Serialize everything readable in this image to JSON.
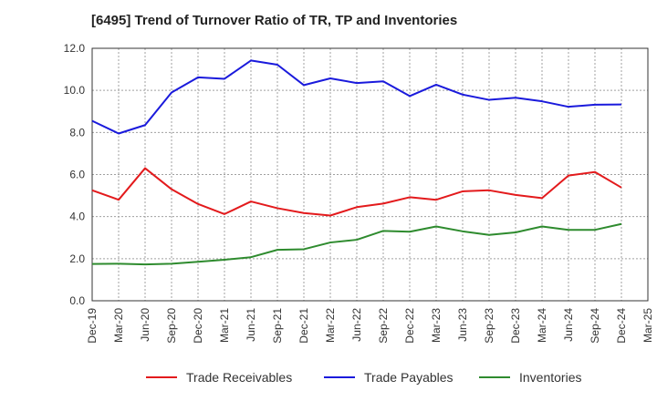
{
  "chart_data": {
    "type": "line",
    "title": "[6495]  Trend of Turnover Ratio of TR, TP and Inventories",
    "xlabel": "",
    "ylabel": "",
    "ylim": [
      0,
      12
    ],
    "yticks": [
      "0.0",
      "2.0",
      "4.0",
      "6.0",
      "8.0",
      "10.0",
      "12.0"
    ],
    "x_tick_labels": [
      "Dec-19",
      "Mar-20",
      "Jun-20",
      "Sep-20",
      "Dec-20",
      "Mar-21",
      "Jun-21",
      "Sep-21",
      "Dec-21",
      "Mar-22",
      "Jun-22",
      "Sep-22",
      "Dec-22",
      "Mar-23",
      "Jun-23",
      "Sep-23",
      "Dec-23",
      "Mar-24",
      "Jun-24",
      "Sep-24",
      "Dec-24",
      "Mar-25"
    ],
    "grid": true,
    "legend_position": "bottom",
    "x": [
      "Dec-19",
      "Mar-20",
      "Jun-20",
      "Sep-20",
      "Dec-20",
      "Mar-21",
      "Jun-21",
      "Sep-21",
      "Dec-21",
      "Mar-22",
      "Jun-22",
      "Sep-22",
      "Dec-22",
      "Mar-23",
      "Jun-23",
      "Sep-23",
      "Dec-23",
      "Mar-24",
      "Jun-24",
      "Sep-24",
      "Dec-24"
    ],
    "series": [
      {
        "name": "Trade Receivables",
        "color": "#e31a1c",
        "values": [
          5.25,
          4.8,
          6.3,
          5.3,
          4.6,
          4.12,
          4.72,
          4.4,
          4.17,
          4.05,
          4.45,
          4.62,
          4.92,
          4.8,
          5.2,
          5.25,
          5.03,
          4.88,
          5.95,
          6.12,
          5.38
        ]
      },
      {
        "name": "Trade Payables",
        "color": "#1a1adc",
        "values": [
          8.55,
          7.95,
          8.35,
          9.9,
          10.62,
          10.55,
          11.42,
          11.22,
          10.25,
          10.57,
          10.35,
          10.43,
          9.73,
          10.27,
          9.8,
          9.55,
          9.65,
          9.48,
          9.22,
          9.32,
          9.33
        ]
      },
      {
        "name": "Inventories",
        "color": "#2e8b2e",
        "values": [
          1.75,
          1.76,
          1.73,
          1.76,
          1.85,
          1.95,
          2.07,
          2.42,
          2.45,
          2.77,
          2.9,
          3.32,
          3.28,
          3.53,
          3.3,
          3.13,
          3.25,
          3.53,
          3.37,
          3.37,
          3.65
        ]
      }
    ]
  }
}
